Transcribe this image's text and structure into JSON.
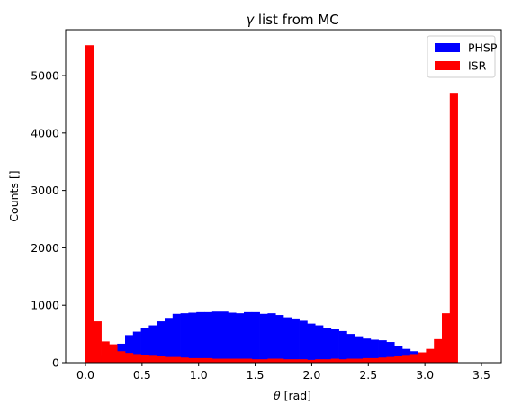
{
  "chart_data": {
    "type": "bar",
    "title_symbol": "γ",
    "title_rest": " list from MC",
    "xlabel_symbol": "θ",
    "xlabel_rest": " [rad]",
    "ylabel": "Counts []",
    "xlim": [
      -0.175,
      3.675
    ],
    "ylim": [
      0,
      5800
    ],
    "xticks": [
      0.0,
      0.5,
      1.0,
      1.5,
      2.0,
      2.5,
      3.0,
      3.5
    ],
    "xtick_labels": [
      "0.0",
      "0.5",
      "1.0",
      "1.5",
      "2.0",
      "2.5",
      "3.0",
      "3.5"
    ],
    "yticks": [
      0,
      1000,
      2000,
      3000,
      4000,
      5000
    ],
    "ytick_labels": [
      "0",
      "1000",
      "2000",
      "3000",
      "4000",
      "5000"
    ],
    "bins": {
      "start": 0.0,
      "width": 0.07,
      "count": 50
    },
    "legend_position": "top-right",
    "series": [
      {
        "name": "PHSP",
        "color": "#0000ff",
        "values": [
          0,
          0,
          120,
          230,
          330,
          480,
          540,
          610,
          650,
          720,
          780,
          850,
          860,
          870,
          880,
          880,
          890,
          890,
          870,
          860,
          880,
          880,
          850,
          860,
          830,
          790,
          770,
          730,
          680,
          650,
          610,
          580,
          550,
          500,
          460,
          420,
          400,
          390,
          360,
          290,
          240,
          200,
          170,
          110,
          60,
          30,
          0,
          0,
          0,
          0
        ]
      },
      {
        "name": "ISR",
        "color": "#ff0000",
        "values": [
          5530,
          720,
          370,
          320,
          200,
          170,
          150,
          140,
          120,
          110,
          100,
          100,
          90,
          80,
          80,
          80,
          70,
          70,
          70,
          70,
          70,
          60,
          60,
          70,
          70,
          60,
          60,
          60,
          50,
          60,
          60,
          70,
          60,
          70,
          70,
          80,
          80,
          90,
          100,
          110,
          120,
          150,
          180,
          240,
          410,
          860,
          4700,
          0,
          0,
          0
        ]
      }
    ]
  }
}
